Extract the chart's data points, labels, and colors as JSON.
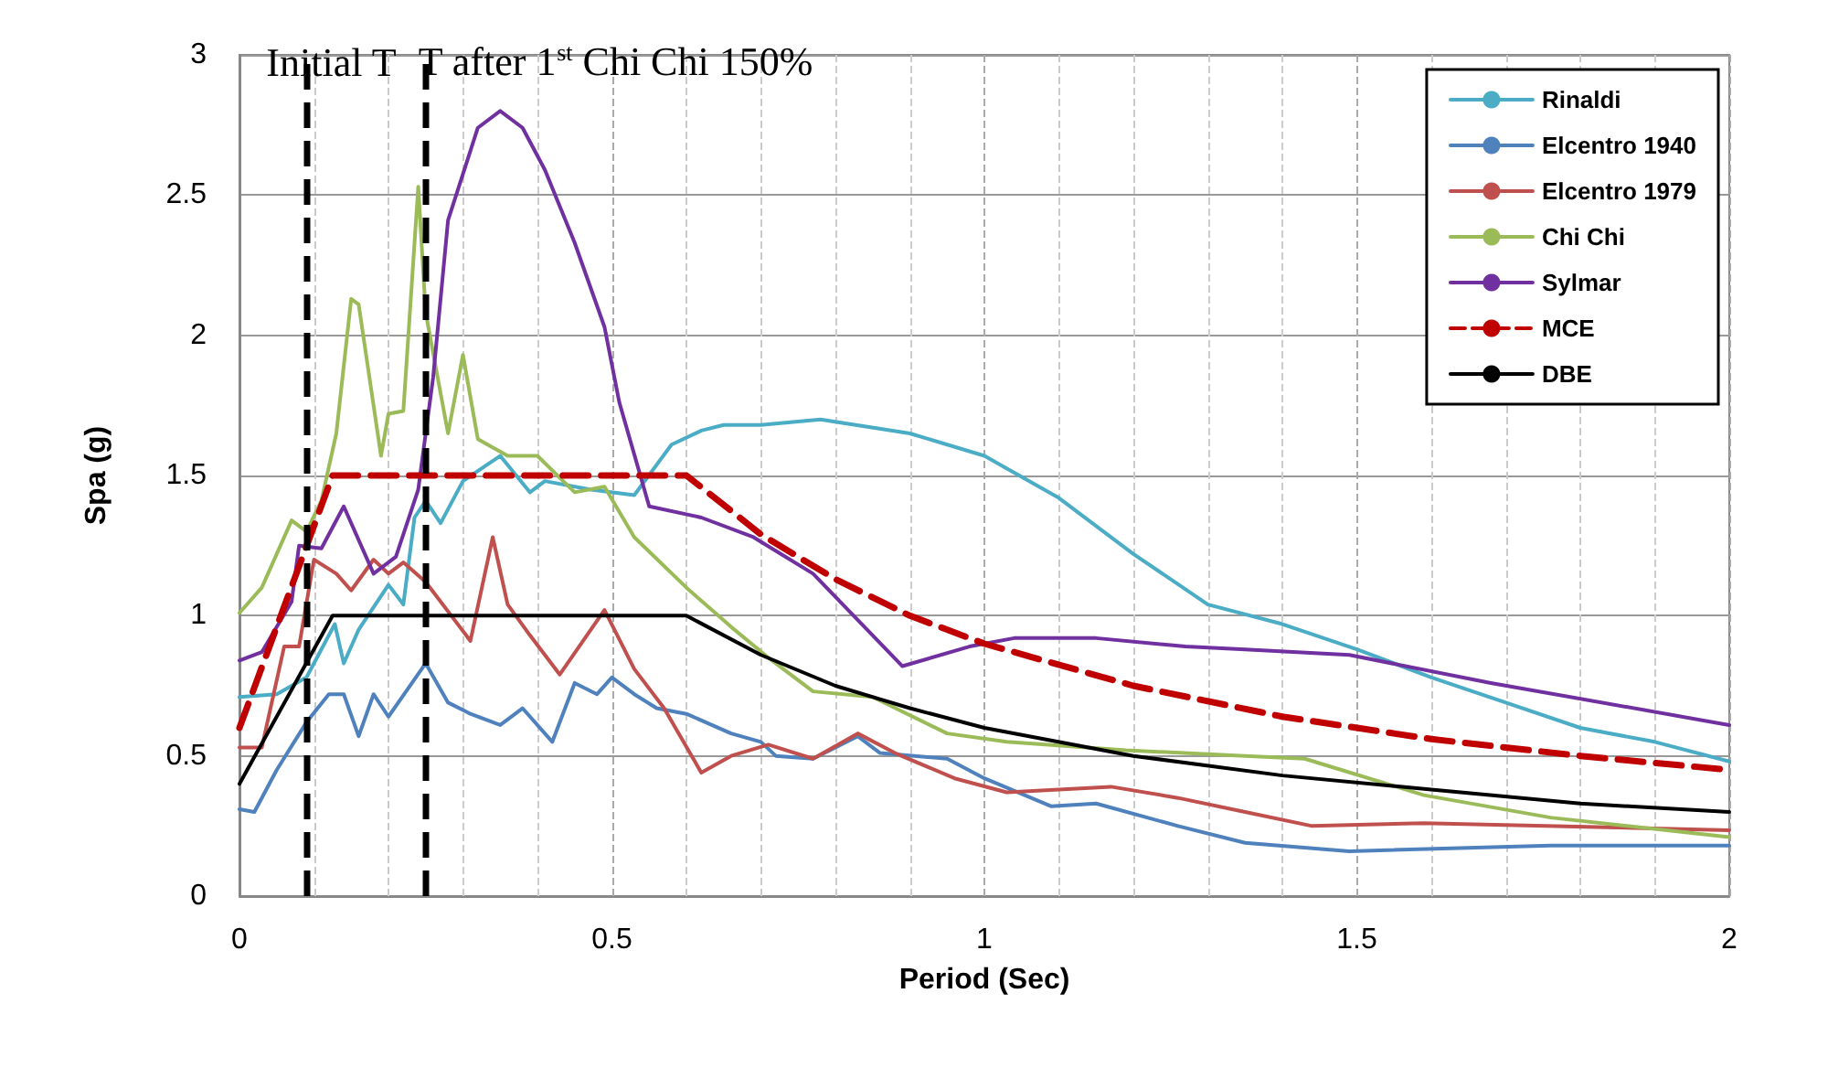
{
  "chart_data": {
    "type": "line",
    "xlabel": "Period (Sec)",
    "ylabel": "Spa (g)",
    "xlim": [
      0,
      2
    ],
    "xticks": [
      0,
      0.5,
      1,
      1.5,
      2
    ],
    "ylim": [
      0,
      3
    ],
    "yticks": [
      0,
      0.5,
      1,
      1.5,
      2,
      2.5,
      3
    ],
    "grid": true,
    "legend": "top right",
    "marker": "none",
    "series": [
      {
        "name": "Rinaldi",
        "color": "#4bacc6",
        "x": [
          0,
          0.05,
          0.09,
          0.128,
          0.14,
          0.16,
          0.2,
          0.22,
          0.235,
          0.25,
          0.27,
          0.3,
          0.35,
          0.39,
          0.41,
          0.47,
          0.53,
          0.58,
          0.62,
          0.65,
          0.7,
          0.78,
          0.9,
          1.0,
          1.1,
          1.2,
          1.3,
          1.4,
          1.5,
          1.6,
          1.7,
          1.8,
          1.9,
          2.0
        ],
        "values": [
          0.71,
          0.72,
          0.78,
          0.97,
          0.83,
          0.95,
          1.11,
          1.04,
          1.35,
          1.41,
          1.33,
          1.48,
          1.57,
          1.44,
          1.48,
          1.45,
          1.43,
          1.61,
          1.66,
          1.68,
          1.68,
          1.7,
          1.65,
          1.57,
          1.42,
          1.22,
          1.04,
          0.97,
          0.88,
          0.78,
          0.69,
          0.6,
          0.55,
          0.48
        ]
      },
      {
        "name": "Elcentro 1940",
        "color": "#4f81bd",
        "x": [
          0,
          0.02,
          0.05,
          0.09,
          0.12,
          0.14,
          0.16,
          0.18,
          0.2,
          0.25,
          0.28,
          0.31,
          0.35,
          0.38,
          0.42,
          0.45,
          0.48,
          0.5,
          0.53,
          0.56,
          0.6,
          0.66,
          0.7,
          0.72,
          0.77,
          0.83,
          0.86,
          0.95,
          1.0,
          1.09,
          1.15,
          1.26,
          1.35,
          1.49,
          1.76,
          2.0
        ],
        "values": [
          0.31,
          0.3,
          0.45,
          0.62,
          0.72,
          0.72,
          0.57,
          0.72,
          0.64,
          0.83,
          0.69,
          0.65,
          0.61,
          0.67,
          0.55,
          0.76,
          0.72,
          0.78,
          0.72,
          0.67,
          0.65,
          0.58,
          0.55,
          0.5,
          0.49,
          0.57,
          0.51,
          0.49,
          0.42,
          0.32,
          0.33,
          0.25,
          0.19,
          0.16,
          0.18,
          0.18
        ]
      },
      {
        "name": "Elcentro 1979",
        "color": "#c0504d",
        "x": [
          0,
          0.03,
          0.06,
          0.08,
          0.1,
          0.13,
          0.15,
          0.18,
          0.2,
          0.22,
          0.25,
          0.31,
          0.34,
          0.36,
          0.39,
          0.43,
          0.49,
          0.53,
          0.57,
          0.62,
          0.66,
          0.71,
          0.77,
          0.83,
          0.88,
          0.96,
          1.03,
          1.17,
          1.26,
          1.35,
          1.44,
          1.59,
          2.0
        ],
        "values": [
          0.53,
          0.53,
          0.89,
          0.89,
          1.2,
          1.15,
          1.09,
          1.2,
          1.15,
          1.19,
          1.12,
          0.91,
          1.28,
          1.04,
          0.93,
          0.79,
          1.02,
          0.81,
          0.67,
          0.44,
          0.5,
          0.54,
          0.49,
          0.58,
          0.51,
          0.42,
          0.37,
          0.39,
          0.35,
          0.3,
          0.25,
          0.26,
          0.235
        ]
      },
      {
        "name": "Chi Chi",
        "color": "#9bbb59",
        "x": [
          0,
          0.03,
          0.07,
          0.09,
          0.11,
          0.13,
          0.15,
          0.16,
          0.19,
          0.2,
          0.22,
          0.24,
          0.25,
          0.28,
          0.3,
          0.32,
          0.36,
          0.4,
          0.45,
          0.49,
          0.53,
          0.6,
          0.66,
          0.71,
          0.77,
          0.85,
          0.95,
          1.03,
          1.19,
          1.35,
          1.43,
          1.59,
          1.76,
          2.0
        ],
        "values": [
          1.01,
          1.1,
          1.34,
          1.3,
          1.41,
          1.65,
          2.13,
          2.11,
          1.57,
          1.72,
          1.73,
          2.53,
          2.08,
          1.65,
          1.93,
          1.63,
          1.57,
          1.57,
          1.44,
          1.46,
          1.28,
          1.1,
          0.96,
          0.85,
          0.73,
          0.71,
          0.58,
          0.55,
          0.52,
          0.5,
          0.49,
          0.36,
          0.28,
          0.21
        ]
      },
      {
        "name": "Sylmar",
        "color": "#7030a0",
        "x": [
          0,
          0.03,
          0.07,
          0.08,
          0.11,
          0.14,
          0.18,
          0.21,
          0.24,
          0.26,
          0.28,
          0.32,
          0.35,
          0.38,
          0.41,
          0.45,
          0.49,
          0.51,
          0.55,
          0.62,
          0.69,
          0.77,
          0.89,
          0.98,
          1.04,
          1.15,
          1.27,
          1.35,
          1.49,
          1.68,
          2.0
        ],
        "values": [
          0.84,
          0.87,
          1.05,
          1.25,
          1.24,
          1.39,
          1.15,
          1.21,
          1.45,
          1.85,
          2.41,
          2.74,
          2.8,
          2.74,
          2.59,
          2.33,
          2.03,
          1.76,
          1.39,
          1.35,
          1.28,
          1.15,
          0.82,
          0.89,
          0.92,
          0.92,
          0.89,
          0.88,
          0.86,
          0.76,
          0.61
        ]
      },
      {
        "name": "MCE",
        "color": "#c00000",
        "line_style": "dashed",
        "x": [
          0,
          0.125,
          0.6,
          0.7,
          0.8,
          0.9,
          1.0,
          1.2,
          1.4,
          1.6,
          1.8,
          2.0
        ],
        "values": [
          0.6,
          1.5,
          1.5,
          1.29,
          1.13,
          1.0,
          0.9,
          0.75,
          0.64,
          0.56,
          0.5,
          0.45
        ]
      },
      {
        "name": "DBE",
        "color": "#000000",
        "x": [
          0,
          0.125,
          0.6,
          0.7,
          0.8,
          0.9,
          1.0,
          1.2,
          1.4,
          1.6,
          1.8,
          2.0
        ],
        "values": [
          0.4,
          1.0,
          1.0,
          0.86,
          0.75,
          0.67,
          0.6,
          0.5,
          0.43,
          0.38,
          0.33,
          0.3
        ]
      }
    ],
    "ref_lines": [
      {
        "axis": "x",
        "value": 0.09,
        "label": "Initial T",
        "color": "#000000",
        "line_style": "dashed"
      },
      {
        "axis": "x",
        "value": 0.253,
        "label": "T after 1$^{st}$ Chi Chi 150%",
        "color": "#000000",
        "line_style": "dashed"
      }
    ]
  }
}
